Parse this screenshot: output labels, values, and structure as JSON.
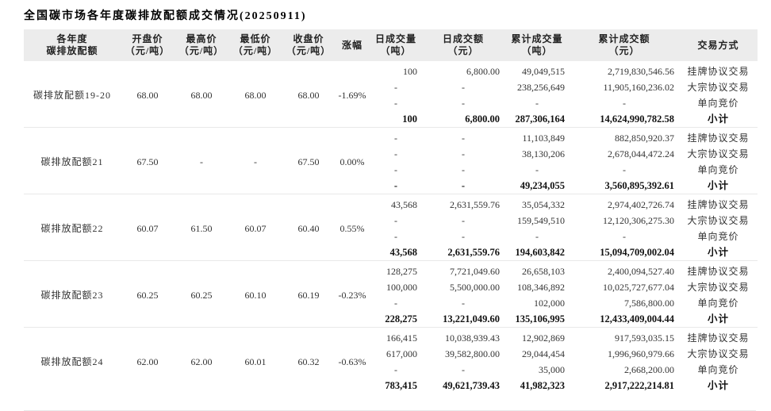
{
  "title": "全国碳市场各年度碳排放配额成交情况(20250911)",
  "colors": {
    "header_bg": "#ececec",
    "divider": "#e9e9e9",
    "text": "#333333"
  },
  "table": {
    "columns": [
      {
        "line1": "各年度",
        "line2": "碳排放配额"
      },
      {
        "line1": "开盘价",
        "line2": "（元/吨）"
      },
      {
        "line1": "最高价",
        "line2": "（元/吨）"
      },
      {
        "line1": "最低价",
        "line2": "（元/吨）"
      },
      {
        "line1": "收盘价",
        "line2": "（元/吨）"
      },
      {
        "line1": "涨幅",
        "line2": ""
      },
      {
        "line1": "日成交量",
        "line2": "（吨）"
      },
      {
        "line1": "日成交额",
        "line2": "（元）"
      },
      {
        "line1": "累计成交量",
        "line2": "（吨）"
      },
      {
        "line1": "累计成交额",
        "line2": "（元）"
      },
      {
        "line1": "交易方式",
        "line2": ""
      }
    ],
    "groups": [
      {
        "name": "碳排放配额19-20",
        "open": "68.00",
        "high": "68.00",
        "low": "68.00",
        "close": "68.00",
        "change": "-1.69%",
        "rows": [
          {
            "daily_qty": "100",
            "daily_amount": "6,800.00",
            "cum_qty": "49,049,515",
            "cum_amount": "2,719,830,546.56",
            "method": "挂牌协议交易"
          },
          {
            "daily_qty": "-",
            "daily_amount": "-",
            "cum_qty": "238,256,649",
            "cum_amount": "11,905,160,236.02",
            "method": "大宗协议交易"
          },
          {
            "daily_qty": "-",
            "daily_amount": "-",
            "cum_qty": "-",
            "cum_amount": "-",
            "method": "单向竞价"
          },
          {
            "daily_qty": "100",
            "daily_amount": "6,800.00",
            "cum_qty": "287,306,164",
            "cum_amount": "14,624,990,782.58",
            "method": "小计",
            "is_subtotal": true
          }
        ]
      },
      {
        "name": "碳排放配额21",
        "open": "67.50",
        "high": "-",
        "low": "-",
        "close": "67.50",
        "change": "0.00%",
        "rows": [
          {
            "daily_qty": "-",
            "daily_amount": "-",
            "cum_qty": "11,103,849",
            "cum_amount": "882,850,920.37",
            "method": "挂牌协议交易"
          },
          {
            "daily_qty": "-",
            "daily_amount": "-",
            "cum_qty": "38,130,206",
            "cum_amount": "2,678,044,472.24",
            "method": "大宗协议交易"
          },
          {
            "daily_qty": "-",
            "daily_amount": "-",
            "cum_qty": "-",
            "cum_amount": "-",
            "method": "单向竞价"
          },
          {
            "daily_qty": "-",
            "daily_amount": "-",
            "cum_qty": "49,234,055",
            "cum_amount": "3,560,895,392.61",
            "method": "小计",
            "is_subtotal": true
          }
        ]
      },
      {
        "name": "碳排放配额22",
        "open": "60.07",
        "high": "61.50",
        "low": "60.07",
        "close": "60.40",
        "change": "0.55%",
        "rows": [
          {
            "daily_qty": "43,568",
            "daily_amount": "2,631,559.76",
            "cum_qty": "35,054,332",
            "cum_amount": "2,974,402,726.74",
            "method": "挂牌协议交易"
          },
          {
            "daily_qty": "-",
            "daily_amount": "-",
            "cum_qty": "159,549,510",
            "cum_amount": "12,120,306,275.30",
            "method": "大宗协议交易"
          },
          {
            "daily_qty": "-",
            "daily_amount": "-",
            "cum_qty": "-",
            "cum_amount": "-",
            "method": "单向竞价"
          },
          {
            "daily_qty": "43,568",
            "daily_amount": "2,631,559.76",
            "cum_qty": "194,603,842",
            "cum_amount": "15,094,709,002.04",
            "method": "小计",
            "is_subtotal": true
          }
        ]
      },
      {
        "name": "碳排放配额23",
        "open": "60.25",
        "high": "60.25",
        "low": "60.10",
        "close": "60.19",
        "change": "-0.23%",
        "rows": [
          {
            "daily_qty": "128,275",
            "daily_amount": "7,721,049.60",
            "cum_qty": "26,658,103",
            "cum_amount": "2,400,094,527.40",
            "method": "挂牌协议交易"
          },
          {
            "daily_qty": "100,000",
            "daily_amount": "5,500,000.00",
            "cum_qty": "108,346,892",
            "cum_amount": "10,025,727,677.04",
            "method": "大宗协议交易"
          },
          {
            "daily_qty": "-",
            "daily_amount": "-",
            "cum_qty": "102,000",
            "cum_amount": "7,586,800.00",
            "method": "单向竞价"
          },
          {
            "daily_qty": "228,275",
            "daily_amount": "13,221,049.60",
            "cum_qty": "135,106,995",
            "cum_amount": "12,433,409,004.44",
            "method": "小计",
            "is_subtotal": true
          }
        ]
      },
      {
        "name": "碳排放配额24",
        "open": "62.00",
        "high": "62.00",
        "low": "60.01",
        "close": "60.32",
        "change": "-0.63%",
        "rows": [
          {
            "daily_qty": "166,415",
            "daily_amount": "10,038,939.43",
            "cum_qty": "12,902,869",
            "cum_amount": "917,593,035.15",
            "method": "挂牌协议交易"
          },
          {
            "daily_qty": "617,000",
            "daily_amount": "39,582,800.00",
            "cum_qty": "29,044,454",
            "cum_amount": "1,996,960,979.66",
            "method": "大宗协议交易"
          },
          {
            "daily_qty": "-",
            "daily_amount": "-",
            "cum_qty": "35,000",
            "cum_amount": "2,668,200.00",
            "method": "单向竞价"
          },
          {
            "daily_qty": "783,415",
            "daily_amount": "49,621,739.43",
            "cum_qty": "41,982,323",
            "cum_amount": "2,917,222,214.81",
            "method": "小计",
            "is_subtotal": true
          }
        ]
      }
    ]
  }
}
